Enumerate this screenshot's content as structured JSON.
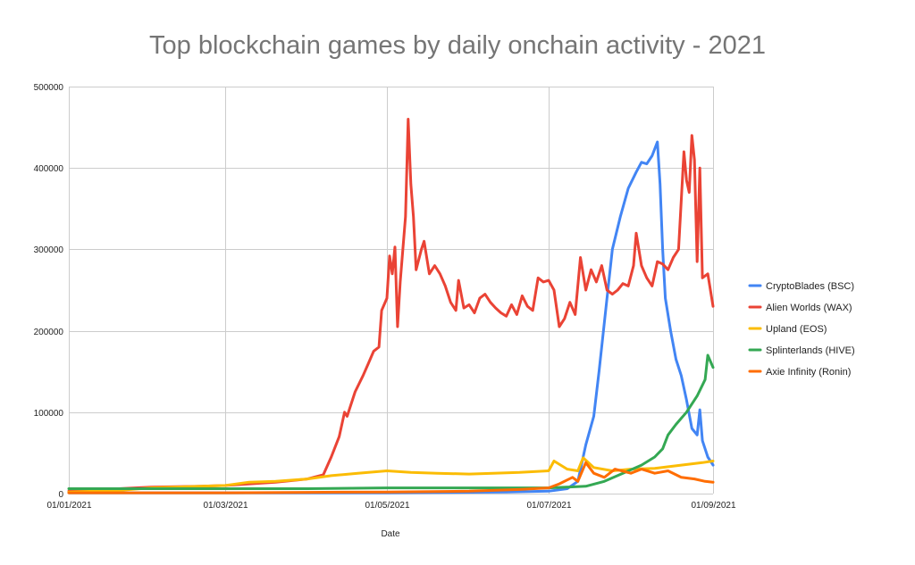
{
  "chart_data": {
    "type": "line",
    "title": "Top blockchain games by daily onchain activity - 2021",
    "xlabel": "Date",
    "ylabel": "",
    "x_range": [
      "2021-01-01",
      "2021-09-01"
    ],
    "ylim": [
      0,
      500000
    ],
    "y_ticks": [
      0,
      100000,
      200000,
      300000,
      400000,
      500000
    ],
    "y_tick_labels": [
      "0",
      "100000",
      "200000",
      "300000",
      "400000",
      "500000"
    ],
    "x_ticks": [
      "2021-01-01",
      "2021-03-01",
      "2021-05-01",
      "2021-07-01",
      "2021-09-01"
    ],
    "x_tick_labels": [
      "01/01/2021",
      "01/03/2021",
      "01/05/2021",
      "01/07/2021",
      "01/09/2021"
    ],
    "grid": true,
    "legend_position": "right",
    "series": [
      {
        "name": "CryptoBlades (BSC)",
        "color": "#4285f4",
        "points": [
          [
            "2021-01-01",
            1000
          ],
          [
            "2021-03-01",
            1000
          ],
          [
            "2021-05-01",
            1000
          ],
          [
            "2021-06-15",
            2000
          ],
          [
            "2021-07-01",
            3000
          ],
          [
            "2021-07-08",
            6000
          ],
          [
            "2021-07-12",
            15000
          ],
          [
            "2021-07-15",
            60000
          ],
          [
            "2021-07-18",
            95000
          ],
          [
            "2021-07-20",
            150000
          ],
          [
            "2021-07-23",
            240000
          ],
          [
            "2021-07-25",
            300000
          ],
          [
            "2021-07-28",
            340000
          ],
          [
            "2021-07-31",
            375000
          ],
          [
            "2021-08-03",
            395000
          ],
          [
            "2021-08-05",
            407000
          ],
          [
            "2021-08-07",
            405000
          ],
          [
            "2021-08-09",
            415000
          ],
          [
            "2021-08-11",
            432000
          ],
          [
            "2021-08-12",
            380000
          ],
          [
            "2021-08-13",
            300000
          ],
          [
            "2021-08-14",
            240000
          ],
          [
            "2021-08-16",
            200000
          ],
          [
            "2021-08-18",
            165000
          ],
          [
            "2021-08-20",
            145000
          ],
          [
            "2021-08-22",
            115000
          ],
          [
            "2021-08-24",
            80000
          ],
          [
            "2021-08-26",
            72000
          ],
          [
            "2021-08-27",
            103000
          ],
          [
            "2021-08-28",
            65000
          ],
          [
            "2021-08-30",
            45000
          ],
          [
            "2021-09-01",
            35000
          ]
        ]
      },
      {
        "name": "Alien Worlds (WAX)",
        "color": "#ea4335",
        "points": [
          [
            "2021-01-01",
            3000
          ],
          [
            "2021-01-20",
            6000
          ],
          [
            "2021-02-01",
            8000
          ],
          [
            "2021-02-20",
            9000
          ],
          [
            "2021-03-01",
            10000
          ],
          [
            "2021-03-20",
            14000
          ],
          [
            "2021-04-01",
            18000
          ],
          [
            "2021-04-07",
            23000
          ],
          [
            "2021-04-10",
            45000
          ],
          [
            "2021-04-13",
            70000
          ],
          [
            "2021-04-15",
            100000
          ],
          [
            "2021-04-16",
            95000
          ],
          [
            "2021-04-19",
            125000
          ],
          [
            "2021-04-22",
            145000
          ],
          [
            "2021-04-24",
            160000
          ],
          [
            "2021-04-26",
            175000
          ],
          [
            "2021-04-28",
            180000
          ],
          [
            "2021-04-29",
            225000
          ],
          [
            "2021-05-01",
            240000
          ],
          [
            "2021-05-02",
            292000
          ],
          [
            "2021-05-03",
            270000
          ],
          [
            "2021-05-04",
            303000
          ],
          [
            "2021-05-05",
            205000
          ],
          [
            "2021-05-06",
            260000
          ],
          [
            "2021-05-08",
            340000
          ],
          [
            "2021-05-09",
            460000
          ],
          [
            "2021-05-10",
            380000
          ],
          [
            "2021-05-11",
            340000
          ],
          [
            "2021-05-12",
            275000
          ],
          [
            "2021-05-14",
            300000
          ],
          [
            "2021-05-15",
            310000
          ],
          [
            "2021-05-17",
            270000
          ],
          [
            "2021-05-19",
            280000
          ],
          [
            "2021-05-21",
            270000
          ],
          [
            "2021-05-23",
            255000
          ],
          [
            "2021-05-25",
            235000
          ],
          [
            "2021-05-27",
            225000
          ],
          [
            "2021-05-28",
            262000
          ],
          [
            "2021-05-30",
            228000
          ],
          [
            "2021-06-01",
            232000
          ],
          [
            "2021-06-03",
            222000
          ],
          [
            "2021-06-05",
            240000
          ],
          [
            "2021-06-07",
            245000
          ],
          [
            "2021-06-09",
            235000
          ],
          [
            "2021-06-11",
            228000
          ],
          [
            "2021-06-13",
            222000
          ],
          [
            "2021-06-15",
            218000
          ],
          [
            "2021-06-17",
            232000
          ],
          [
            "2021-06-19",
            220000
          ],
          [
            "2021-06-21",
            243000
          ],
          [
            "2021-06-23",
            230000
          ],
          [
            "2021-06-25",
            225000
          ],
          [
            "2021-06-27",
            265000
          ],
          [
            "2021-06-29",
            260000
          ],
          [
            "2021-07-01",
            262000
          ],
          [
            "2021-07-03",
            250000
          ],
          [
            "2021-07-05",
            205000
          ],
          [
            "2021-07-07",
            215000
          ],
          [
            "2021-07-09",
            235000
          ],
          [
            "2021-07-11",
            220000
          ],
          [
            "2021-07-13",
            290000
          ],
          [
            "2021-07-15",
            250000
          ],
          [
            "2021-07-17",
            275000
          ],
          [
            "2021-07-19",
            260000
          ],
          [
            "2021-07-21",
            280000
          ],
          [
            "2021-07-23",
            250000
          ],
          [
            "2021-07-25",
            245000
          ],
          [
            "2021-07-27",
            250000
          ],
          [
            "2021-07-29",
            258000
          ],
          [
            "2021-07-31",
            255000
          ],
          [
            "2021-08-02",
            280000
          ],
          [
            "2021-08-03",
            320000
          ],
          [
            "2021-08-05",
            280000
          ],
          [
            "2021-08-07",
            265000
          ],
          [
            "2021-08-09",
            255000
          ],
          [
            "2021-08-11",
            285000
          ],
          [
            "2021-08-13",
            282000
          ],
          [
            "2021-08-15",
            275000
          ],
          [
            "2021-08-17",
            290000
          ],
          [
            "2021-08-19",
            300000
          ],
          [
            "2021-08-21",
            420000
          ],
          [
            "2021-08-22",
            385000
          ],
          [
            "2021-08-23",
            370000
          ],
          [
            "2021-08-24",
            440000
          ],
          [
            "2021-08-25",
            410000
          ],
          [
            "2021-08-26",
            285000
          ],
          [
            "2021-08-27",
            400000
          ],
          [
            "2021-08-28",
            265000
          ],
          [
            "2021-08-30",
            270000
          ],
          [
            "2021-09-01",
            230000
          ]
        ]
      },
      {
        "name": "Upland (EOS)",
        "color": "#fbbc04",
        "points": [
          [
            "2021-01-01",
            2000
          ],
          [
            "2021-01-20",
            4000
          ],
          [
            "2021-02-01",
            7000
          ],
          [
            "2021-02-20",
            9000
          ],
          [
            "2021-03-01",
            10000
          ],
          [
            "2021-03-10",
            14000
          ],
          [
            "2021-03-20",
            15000
          ],
          [
            "2021-04-01",
            18000
          ],
          [
            "2021-04-10",
            22000
          ],
          [
            "2021-04-20",
            25000
          ],
          [
            "2021-05-01",
            28000
          ],
          [
            "2021-05-10",
            26000
          ],
          [
            "2021-05-20",
            25000
          ],
          [
            "2021-06-01",
            24000
          ],
          [
            "2021-06-10",
            25000
          ],
          [
            "2021-06-20",
            26000
          ],
          [
            "2021-07-01",
            28000
          ],
          [
            "2021-07-03",
            40000
          ],
          [
            "2021-07-08",
            30000
          ],
          [
            "2021-07-12",
            28000
          ],
          [
            "2021-07-14",
            44000
          ],
          [
            "2021-07-18",
            32000
          ],
          [
            "2021-07-25",
            28000
          ],
          [
            "2021-08-01",
            30000
          ],
          [
            "2021-08-10",
            31000
          ],
          [
            "2021-08-20",
            35000
          ],
          [
            "2021-08-28",
            38000
          ],
          [
            "2021-09-01",
            40000
          ]
        ]
      },
      {
        "name": "Splinterlands  (HIVE)",
        "color": "#34a853",
        "points": [
          [
            "2021-01-01",
            6000
          ],
          [
            "2021-02-01",
            6000
          ],
          [
            "2021-03-01",
            6000
          ],
          [
            "2021-04-01",
            6000
          ],
          [
            "2021-05-01",
            7000
          ],
          [
            "2021-06-01",
            7000
          ],
          [
            "2021-07-01",
            7000
          ],
          [
            "2021-07-15",
            9000
          ],
          [
            "2021-07-22",
            15000
          ],
          [
            "2021-07-29",
            25000
          ],
          [
            "2021-08-05",
            35000
          ],
          [
            "2021-08-10",
            45000
          ],
          [
            "2021-08-13",
            55000
          ],
          [
            "2021-08-15",
            72000
          ],
          [
            "2021-08-18",
            85000
          ],
          [
            "2021-08-22",
            100000
          ],
          [
            "2021-08-26",
            120000
          ],
          [
            "2021-08-29",
            140000
          ],
          [
            "2021-08-30",
            170000
          ],
          [
            "2021-09-01",
            155000
          ]
        ]
      },
      {
        "name": "Axie Infinity (Ronin)",
        "color": "#ff6d01",
        "points": [
          [
            "2021-01-01",
            1000
          ],
          [
            "2021-02-01",
            1000
          ],
          [
            "2021-03-01",
            1000
          ],
          [
            "2021-04-01",
            1500
          ],
          [
            "2021-05-01",
            2000
          ],
          [
            "2021-06-01",
            3000
          ],
          [
            "2021-06-20",
            5000
          ],
          [
            "2021-07-01",
            7000
          ],
          [
            "2021-07-05",
            12000
          ],
          [
            "2021-07-10",
            20000
          ],
          [
            "2021-07-12",
            15000
          ],
          [
            "2021-07-15",
            38000
          ],
          [
            "2021-07-18",
            25000
          ],
          [
            "2021-07-22",
            20000
          ],
          [
            "2021-07-26",
            30000
          ],
          [
            "2021-08-01",
            25000
          ],
          [
            "2021-08-05",
            30000
          ],
          [
            "2021-08-10",
            25000
          ],
          [
            "2021-08-15",
            28000
          ],
          [
            "2021-08-20",
            20000
          ],
          [
            "2021-08-25",
            18000
          ],
          [
            "2021-08-29",
            15000
          ],
          [
            "2021-09-01",
            14000
          ]
        ]
      }
    ]
  }
}
